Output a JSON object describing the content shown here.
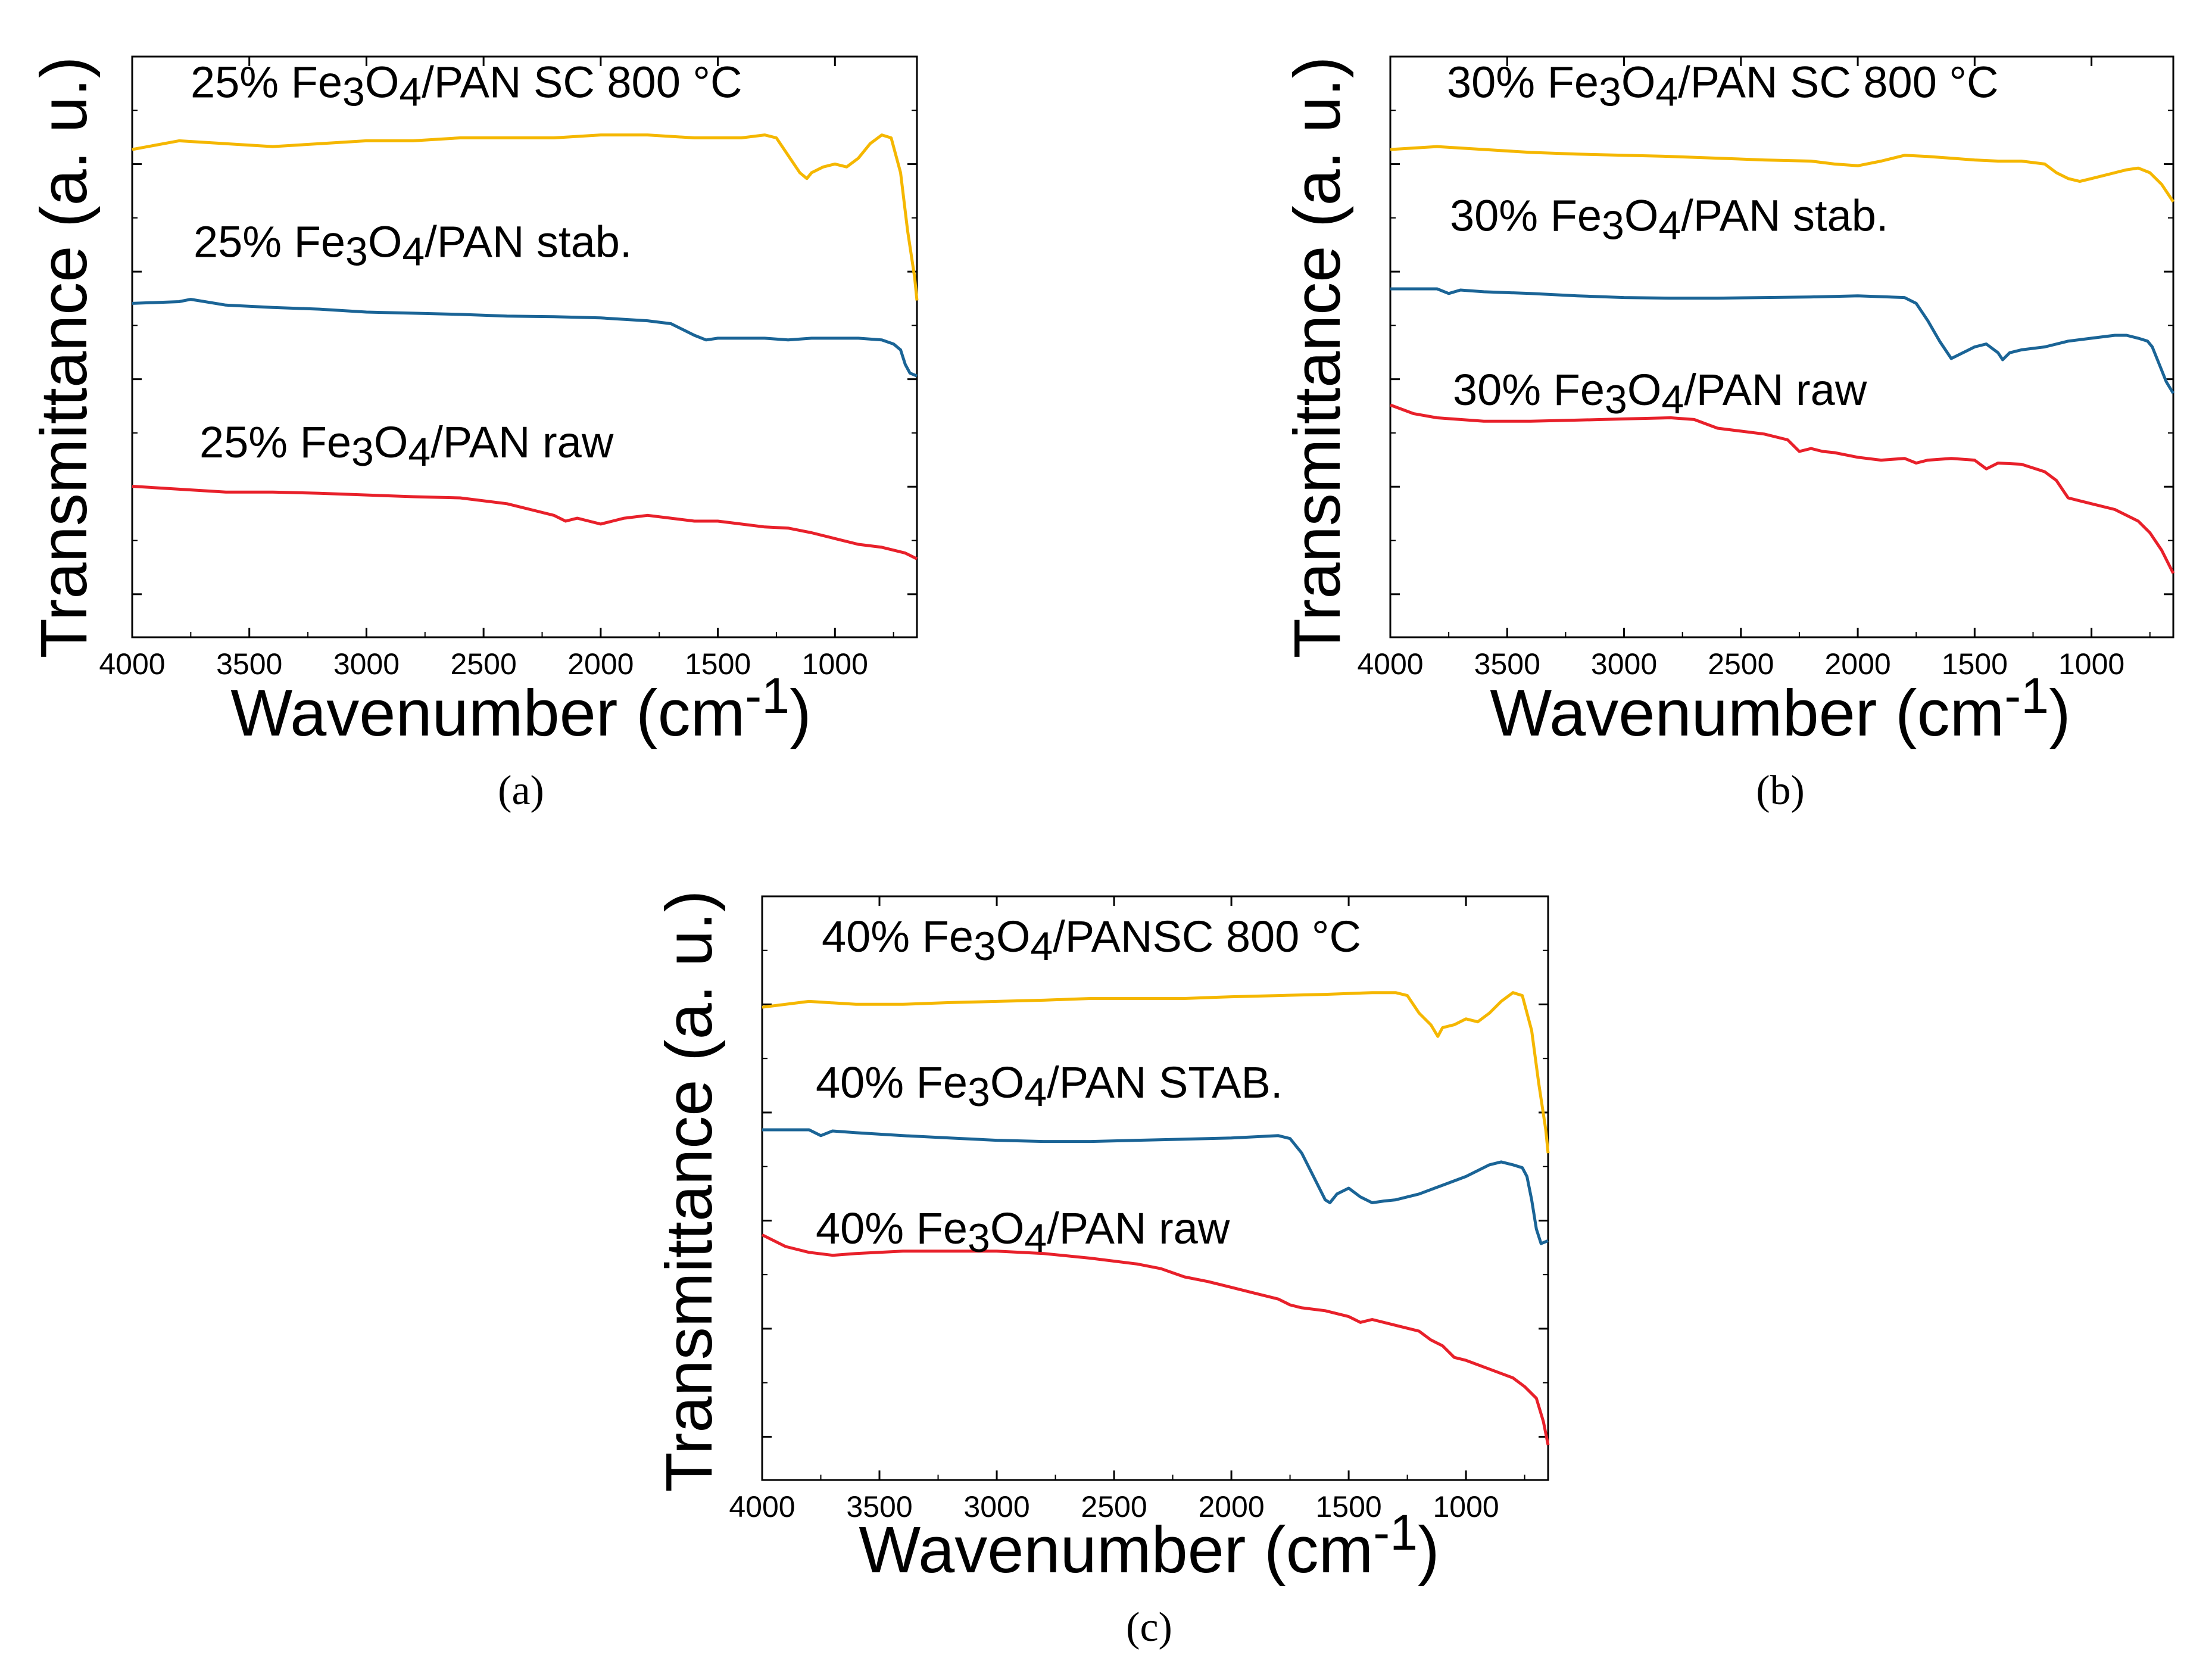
{
  "figure": {
    "panels": [
      {
        "id": "a",
        "caption": "(a)"
      },
      {
        "id": "b",
        "caption": "(b)"
      },
      {
        "id": "c",
        "caption": "(c)"
      }
    ]
  },
  "chart_data": [
    {
      "type": "line",
      "panel": "a",
      "title": "",
      "xlabel": "Wavenumber (cm-1)",
      "ylabel": "Transmittance (a. u.)",
      "xlim": [
        4000,
        650
      ],
      "ylim": [
        0,
        1
      ],
      "x_reversed": true,
      "xticks": [
        4000,
        3500,
        3000,
        2500,
        2000,
        1500,
        1000
      ],
      "xtick_labels": [
        "4000",
        "3500",
        "3000",
        "2500",
        "2000",
        "1500",
        "1000"
      ],
      "y_tick_labels_shown": false,
      "grid": false,
      "series": [
        {
          "name": "25% Fe3O4/PAN  SC 800 °C",
          "color": "#f5b700",
          "x": [
            4000,
            3800,
            3600,
            3400,
            3200,
            3000,
            2800,
            2600,
            2400,
            2200,
            2000,
            1800,
            1600,
            1400,
            1300,
            1250,
            1200,
            1150,
            1120,
            1100,
            1050,
            1000,
            950,
            900,
            850,
            800,
            760,
            720,
            690,
            660,
            650
          ],
          "values": [
            0.84,
            0.855,
            0.85,
            0.845,
            0.85,
            0.855,
            0.855,
            0.86,
            0.86,
            0.86,
            0.865,
            0.865,
            0.86,
            0.86,
            0.865,
            0.86,
            0.83,
            0.8,
            0.79,
            0.8,
            0.81,
            0.815,
            0.81,
            0.825,
            0.85,
            0.865,
            0.86,
            0.8,
            0.7,
            0.62,
            0.58
          ]
        },
        {
          "name": "25% Fe3O4/PAN stab.",
          "color": "#1a6496",
          "x": [
            4000,
            3800,
            3750,
            3600,
            3400,
            3200,
            3000,
            2800,
            2600,
            2400,
            2200,
            2000,
            1800,
            1700,
            1650,
            1600,
            1550,
            1500,
            1400,
            1300,
            1200,
            1100,
            1000,
            900,
            800,
            750,
            720,
            700,
            680,
            650
          ],
          "values": [
            0.575,
            0.578,
            0.582,
            0.572,
            0.568,
            0.565,
            0.56,
            0.558,
            0.556,
            0.553,
            0.552,
            0.55,
            0.545,
            0.54,
            0.53,
            0.52,
            0.512,
            0.515,
            0.515,
            0.515,
            0.512,
            0.515,
            0.515,
            0.515,
            0.512,
            0.505,
            0.495,
            0.47,
            0.455,
            0.45
          ]
        },
        {
          "name": "25% Fe3O4/PAN raw",
          "color": "#e8202a",
          "x": [
            4000,
            3800,
            3600,
            3400,
            3200,
            3000,
            2800,
            2600,
            2400,
            2300,
            2200,
            2150,
            2100,
            2050,
            2000,
            1950,
            1900,
            1800,
            1700,
            1600,
            1500,
            1400,
            1300,
            1200,
            1100,
            1000,
            900,
            800,
            700,
            650
          ],
          "values": [
            0.26,
            0.255,
            0.25,
            0.25,
            0.248,
            0.245,
            0.242,
            0.24,
            0.23,
            0.22,
            0.21,
            0.2,
            0.205,
            0.2,
            0.195,
            0.2,
            0.205,
            0.21,
            0.205,
            0.2,
            0.2,
            0.195,
            0.19,
            0.188,
            0.18,
            0.17,
            0.16,
            0.155,
            0.145,
            0.135
          ]
        }
      ]
    },
    {
      "type": "line",
      "panel": "b",
      "title": "",
      "xlabel": "Wavenumber (cm-1)",
      "ylabel": "Transmittance (a. u.)",
      "xlim": [
        4000,
        650
      ],
      "ylim": [
        0,
        1
      ],
      "x_reversed": true,
      "xticks": [
        4000,
        3500,
        3000,
        2500,
        2000,
        1500,
        1000
      ],
      "xtick_labels": [
        "4000",
        "3500",
        "3000",
        "2500",
        "2000",
        "1500",
        "1000"
      ],
      "y_tick_labels_shown": false,
      "grid": false,
      "series": [
        {
          "name": "30% Fe3O4/PAN SC 800 °C",
          "color": "#f5b700",
          "x": [
            4000,
            3800,
            3600,
            3400,
            3200,
            3000,
            2800,
            2600,
            2400,
            2200,
            2100,
            2000,
            1900,
            1800,
            1700,
            1600,
            1500,
            1400,
            1300,
            1200,
            1150,
            1100,
            1050,
            1000,
            950,
            900,
            850,
            800,
            750,
            700,
            650
          ],
          "values": [
            0.84,
            0.845,
            0.84,
            0.835,
            0.832,
            0.83,
            0.828,
            0.825,
            0.822,
            0.82,
            0.815,
            0.812,
            0.82,
            0.83,
            0.828,
            0.825,
            0.822,
            0.82,
            0.82,
            0.815,
            0.8,
            0.79,
            0.785,
            0.79,
            0.795,
            0.8,
            0.805,
            0.808,
            0.8,
            0.78,
            0.75
          ]
        },
        {
          "name": "30% Fe3O4/PAN stab.",
          "color": "#1a6496",
          "x": [
            4000,
            3800,
            3750,
            3700,
            3600,
            3400,
            3200,
            3000,
            2800,
            2600,
            2400,
            2200,
            2000,
            1800,
            1750,
            1700,
            1650,
            1600,
            1550,
            1500,
            1450,
            1400,
            1380,
            1350,
            1300,
            1200,
            1100,
            1000,
            900,
            850,
            800,
            760,
            740,
            700,
            680,
            650
          ],
          "values": [
            0.6,
            0.6,
            0.592,
            0.598,
            0.595,
            0.592,
            0.588,
            0.585,
            0.584,
            0.584,
            0.585,
            0.586,
            0.588,
            0.585,
            0.575,
            0.545,
            0.51,
            0.48,
            0.49,
            0.5,
            0.505,
            0.49,
            0.478,
            0.49,
            0.495,
            0.5,
            0.51,
            0.515,
            0.52,
            0.52,
            0.515,
            0.51,
            0.5,
            0.46,
            0.44,
            0.42
          ]
        },
        {
          "name": "30% Fe3O4/PAN raw",
          "color": "#e8202a",
          "x": [
            4000,
            3900,
            3800,
            3700,
            3600,
            3400,
            3200,
            3000,
            2800,
            2700,
            2600,
            2500,
            2400,
            2300,
            2250,
            2200,
            2150,
            2100,
            2000,
            1900,
            1800,
            1750,
            1700,
            1600,
            1500,
            1450,
            1400,
            1300,
            1200,
            1150,
            1100,
            1050,
            1000,
            900,
            800,
            750,
            700,
            650
          ],
          "values": [
            0.4,
            0.385,
            0.378,
            0.375,
            0.372,
            0.372,
            0.374,
            0.376,
            0.378,
            0.375,
            0.36,
            0.355,
            0.35,
            0.34,
            0.32,
            0.325,
            0.32,
            0.318,
            0.31,
            0.305,
            0.308,
            0.3,
            0.305,
            0.308,
            0.305,
            0.29,
            0.3,
            0.298,
            0.285,
            0.27,
            0.24,
            0.235,
            0.23,
            0.22,
            0.2,
            0.18,
            0.15,
            0.11
          ]
        }
      ]
    },
    {
      "type": "line",
      "panel": "c",
      "title": "",
      "xlabel": "Wavenumber (cm-1)",
      "ylabel": "Transmittance (a. u.)",
      "xlim": [
        4000,
        650
      ],
      "ylim": [
        0,
        1
      ],
      "x_reversed": true,
      "xticks": [
        4000,
        3500,
        3000,
        2500,
        2000,
        1500,
        1000
      ],
      "xtick_labels": [
        "4000",
        "3500",
        "3000",
        "2500",
        "2000",
        "1500",
        "1000"
      ],
      "y_tick_labels_shown": false,
      "grid": false,
      "series": [
        {
          "name": "40% Fe3O4/PANSC 800 °C",
          "color": "#f5b700",
          "x": [
            4000,
            3800,
            3600,
            3400,
            3200,
            3000,
            2800,
            2600,
            2400,
            2200,
            2000,
            1800,
            1600,
            1400,
            1300,
            1250,
            1200,
            1150,
            1120,
            1100,
            1050,
            1000,
            950,
            900,
            850,
            800,
            760,
            720,
            690,
            660,
            650
          ],
          "values": [
            0.81,
            0.82,
            0.815,
            0.815,
            0.818,
            0.82,
            0.822,
            0.825,
            0.825,
            0.825,
            0.828,
            0.83,
            0.832,
            0.835,
            0.835,
            0.83,
            0.8,
            0.78,
            0.76,
            0.775,
            0.78,
            0.79,
            0.785,
            0.8,
            0.82,
            0.835,
            0.83,
            0.77,
            0.68,
            0.6,
            0.56
          ]
        },
        {
          "name": "40% Fe3O4/PAN  STAB.",
          "color": "#1a6496",
          "x": [
            4000,
            3800,
            3750,
            3700,
            3600,
            3400,
            3200,
            3000,
            2800,
            2600,
            2400,
            2200,
            2000,
            1800,
            1750,
            1700,
            1650,
            1600,
            1580,
            1550,
            1500,
            1450,
            1400,
            1350,
            1300,
            1200,
            1100,
            1000,
            900,
            850,
            800,
            760,
            740,
            720,
            700,
            680,
            650
          ],
          "values": [
            0.6,
            0.6,
            0.59,
            0.598,
            0.595,
            0.59,
            0.586,
            0.582,
            0.58,
            0.58,
            0.582,
            0.584,
            0.586,
            0.59,
            0.585,
            0.56,
            0.52,
            0.48,
            0.475,
            0.49,
            0.5,
            0.485,
            0.475,
            0.478,
            0.48,
            0.49,
            0.505,
            0.52,
            0.54,
            0.545,
            0.54,
            0.535,
            0.52,
            0.48,
            0.43,
            0.405,
            0.41
          ]
        },
        {
          "name": "40% Fe3O4/PAN raw",
          "color": "#e8202a",
          "x": [
            4000,
            3900,
            3800,
            3700,
            3600,
            3500,
            3400,
            3200,
            3000,
            2800,
            2600,
            2400,
            2300,
            2250,
            2200,
            2100,
            2000,
            1900,
            1800,
            1750,
            1700,
            1600,
            1500,
            1450,
            1400,
            1300,
            1200,
            1150,
            1100,
            1050,
            1000,
            900,
            800,
            750,
            700,
            670,
            650
          ],
          "values": [
            0.42,
            0.4,
            0.39,
            0.385,
            0.388,
            0.39,
            0.392,
            0.392,
            0.392,
            0.388,
            0.38,
            0.37,
            0.362,
            0.355,
            0.348,
            0.34,
            0.33,
            0.32,
            0.31,
            0.3,
            0.295,
            0.29,
            0.28,
            0.27,
            0.275,
            0.265,
            0.255,
            0.24,
            0.23,
            0.21,
            0.205,
            0.19,
            0.175,
            0.16,
            0.14,
            0.1,
            0.06
          ]
        }
      ]
    }
  ]
}
